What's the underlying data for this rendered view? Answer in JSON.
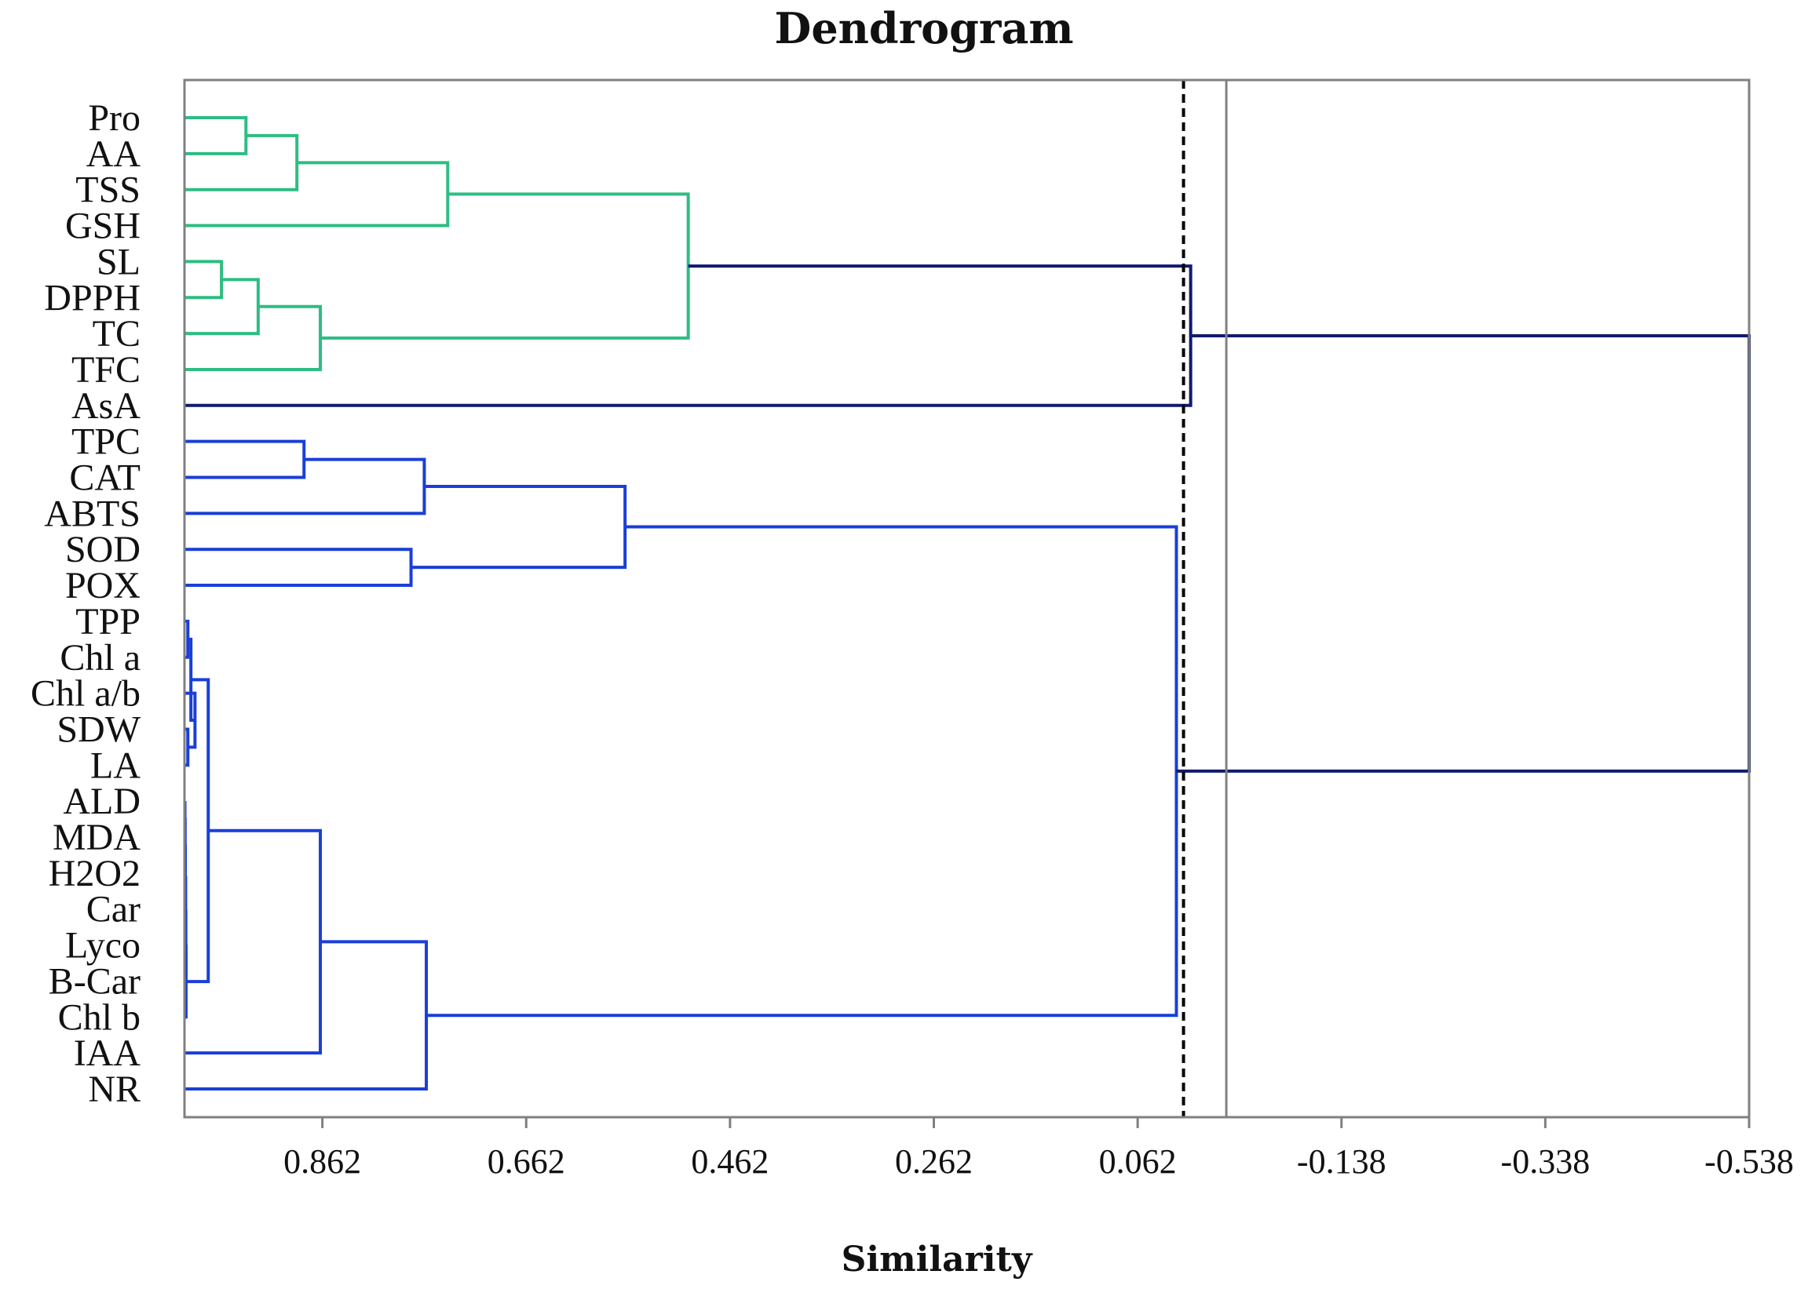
{
  "chart_data": {
    "type": "dendrogram",
    "title": "Dendrogram",
    "xlabel": "Similarity",
    "ylabel": "",
    "xlim": [
      0.9973,
      -0.538
    ],
    "x_ticks": [
      0.862,
      0.662,
      0.462,
      0.262,
      0.062,
      -0.138,
      -0.338,
      -0.538
    ],
    "x_tick_labels": [
      "0.862",
      "0.662",
      "0.462",
      "0.262",
      "0.062",
      "-0.138",
      "-0.338",
      "-0.538"
    ],
    "cut_line_dashed": 0.017,
    "reference_line": -0.025,
    "leaves": [
      "Pro",
      "AA",
      "TSS",
      "GSH",
      "SL",
      "DPPH",
      "TC",
      "TFC",
      "AsA",
      "TPC",
      "CAT",
      "ABTS",
      "SOD",
      "POX",
      "TPP",
      "Chl a",
      "Chl a/b",
      "SDW",
      "LA",
      "ALD",
      "MDA",
      "H2O2",
      "Car",
      "Lyco",
      "B-Car",
      "Chl b",
      "IAA",
      "NR"
    ],
    "colors": {
      "green": "#2dbd82",
      "blue": "#1a3ed8",
      "navy": "#111a6e",
      "cut_line": "#000000",
      "reference_line": "#808080",
      "frame": "#808080"
    },
    "merges": [
      {
        "a": "L0",
        "b": "L1",
        "sim": 0.937,
        "color": "green"
      },
      {
        "a": "M0",
        "b": "L2",
        "sim": 0.887,
        "color": "green"
      },
      {
        "a": "M1",
        "b": "L3",
        "sim": 0.739,
        "color": "green"
      },
      {
        "a": "L4",
        "b": "L5",
        "sim": 0.961,
        "color": "green"
      },
      {
        "a": "M3",
        "b": "L6",
        "sim": 0.925,
        "color": "green"
      },
      {
        "a": "M4",
        "b": "L7",
        "sim": 0.864,
        "color": "green"
      },
      {
        "a": "M2",
        "b": "M5",
        "sim": 0.503,
        "color": "green"
      },
      {
        "a": "M6",
        "b": "L8",
        "sim": 0.01,
        "color": "navy"
      },
      {
        "a": "L9",
        "b": "L10",
        "sim": 0.88,
        "color": "blue"
      },
      {
        "a": "M8",
        "b": "L11",
        "sim": 0.762,
        "color": "blue"
      },
      {
        "a": "L12",
        "b": "L13",
        "sim": 0.775,
        "color": "blue"
      },
      {
        "a": "M9",
        "b": "M10",
        "sim": 0.565,
        "color": "blue"
      },
      {
        "a": "L14",
        "b": "L15",
        "sim": 0.994,
        "color": "blue"
      },
      {
        "a": "L17",
        "b": "L18",
        "sim": 0.994,
        "color": "blue"
      },
      {
        "a": "L16",
        "b": "M13",
        "sim": 0.987,
        "color": "blue"
      },
      {
        "a": "M12",
        "b": "M14",
        "sim": 0.991,
        "color": "blue"
      },
      {
        "a": "L19",
        "b": "L20",
        "sim": 0.9969,
        "color": "blue"
      },
      {
        "a": "M16",
        "b": "L21",
        "sim": 0.9967,
        "color": "blue"
      },
      {
        "a": "M17",
        "b": "L22",
        "sim": 0.9965,
        "color": "blue"
      },
      {
        "a": "M18",
        "b": "L23",
        "sim": 0.9962,
        "color": "blue"
      },
      {
        "a": "M19",
        "b": "L24",
        "sim": 0.996,
        "color": "blue"
      },
      {
        "a": "M20",
        "b": "L25",
        "sim": 0.9958,
        "color": "blue"
      },
      {
        "a": "M15",
        "b": "M21",
        "sim": 0.974,
        "color": "blue"
      },
      {
        "a": "M22",
        "b": "L26",
        "sim": 0.864,
        "color": "blue"
      },
      {
        "a": "M23",
        "b": "L27",
        "sim": 0.76,
        "color": "blue"
      },
      {
        "a": "M11",
        "b": "M24",
        "sim": 0.024,
        "color": "blue"
      },
      {
        "a": "M7",
        "b": "M25",
        "sim": -0.538,
        "color": "navy"
      }
    ]
  }
}
